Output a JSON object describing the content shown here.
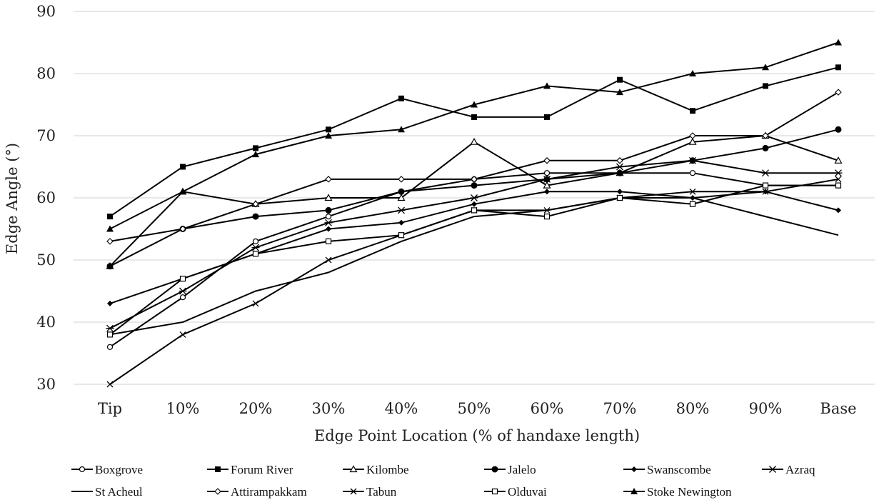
{
  "chart_data": {
    "type": "line",
    "title": "",
    "xlabel": "Edge Point Location (% of handaxe length)",
    "ylabel": "Edge Angle (°)",
    "ylim": [
      30,
      90
    ],
    "yticks": [
      30,
      40,
      50,
      60,
      70,
      80,
      90
    ],
    "grid": "horizontal",
    "legend_position": "bottom",
    "categories": [
      "Tip",
      "10%",
      "20%",
      "30%",
      "40%",
      "50%",
      "60%",
      "70%",
      "80%",
      "90%",
      "Base"
    ],
    "series": [
      {
        "name": "Boxgrove",
        "marker": "circle-open",
        "values": [
          36,
          44,
          53,
          57,
          61,
          63,
          64,
          64,
          64,
          62,
          62
        ]
      },
      {
        "name": "Forum River",
        "marker": "square-filled",
        "values": [
          57,
          65,
          68,
          71,
          76,
          73,
          73,
          79,
          74,
          78,
          81
        ]
      },
      {
        "name": "Kilombe",
        "marker": "triangle-open",
        "values": [
          49,
          61,
          59,
          60,
          60,
          69,
          62,
          64,
          69,
          70,
          66
        ]
      },
      {
        "name": "Jalelo",
        "marker": "circle-filled",
        "values": [
          49,
          55,
          57,
          58,
          61,
          62,
          63,
          64,
          66,
          68,
          71
        ]
      },
      {
        "name": "Swanscombe",
        "marker": "diamond-filled",
        "values": [
          43,
          47,
          51,
          55,
          56,
          59,
          61,
          61,
          60,
          61,
          58
        ]
      },
      {
        "name": "Azraq",
        "marker": "asterisk",
        "values": [
          39,
          45,
          52,
          56,
          58,
          60,
          63,
          65,
          66,
          64,
          64
        ]
      },
      {
        "name": "St Acheul",
        "marker": "none",
        "values": [
          38,
          40,
          45,
          48,
          53,
          57,
          58,
          60,
          60,
          57,
          54
        ]
      },
      {
        "name": "Attirampakkam",
        "marker": "diamond-open",
        "values": [
          53,
          55,
          59,
          63,
          63,
          63,
          66,
          66,
          70,
          70,
          77
        ]
      },
      {
        "name": "Tabun",
        "marker": "x",
        "values": [
          30,
          38,
          43,
          50,
          54,
          58,
          58,
          60,
          61,
          61,
          63
        ]
      },
      {
        "name": "Olduvai",
        "marker": "square-open",
        "values": [
          38,
          47,
          51,
          53,
          54,
          58,
          57,
          60,
          59,
          62,
          62
        ]
      },
      {
        "name": "Stoke Newington",
        "marker": "triangle-filled",
        "values": [
          55,
          61,
          67,
          70,
          71,
          75,
          78,
          77,
          80,
          81,
          85
        ]
      }
    ]
  }
}
